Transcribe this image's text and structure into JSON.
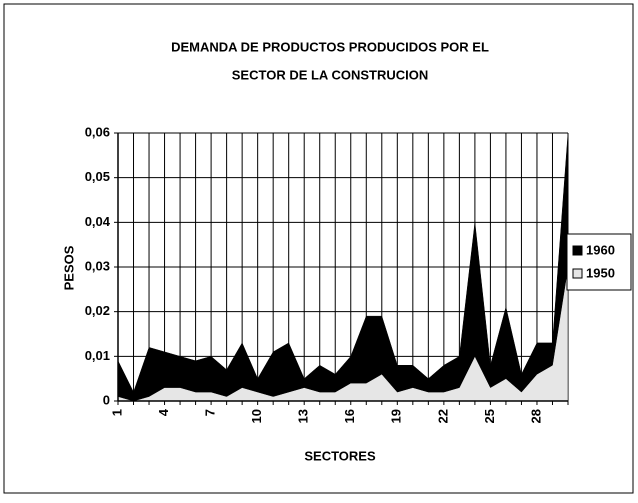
{
  "chart_data": {
    "type": "area",
    "title": [
      "DEMANDA DE PRODUCTOS PRODUCIDOS POR EL",
      "SECTOR DE LA CONSTRUCION"
    ],
    "x_label": "SECTORES",
    "y_label": "PESOS",
    "categories": [
      "1",
      null,
      null,
      "4",
      null,
      null,
      "7",
      null,
      null,
      "10",
      null,
      null,
      "13",
      null,
      null,
      "16",
      null,
      null,
      "19",
      null,
      null,
      "22",
      null,
      null,
      "25",
      null,
      null,
      "28",
      null,
      null
    ],
    "series": [
      {
        "name": "1960",
        "color": "#000000",
        "values": [
          0.009,
          0.002,
          0.012,
          0.011,
          0.01,
          0.009,
          0.01,
          0.007,
          0.013,
          0.005,
          0.011,
          0.013,
          0.005,
          0.008,
          0.006,
          0.01,
          0.019,
          0.019,
          0.008,
          0.008,
          0.005,
          0.008,
          0.01,
          0.04,
          0.008,
          0.021,
          0.006,
          0.013,
          0.013,
          0.06
        ]
      },
      {
        "name": "1950",
        "color": "#e6e6e6",
        "values": [
          0.001,
          0.0,
          0.001,
          0.003,
          0.003,
          0.002,
          0.002,
          0.001,
          0.003,
          0.002,
          0.001,
          0.002,
          0.003,
          0.002,
          0.002,
          0.004,
          0.004,
          0.006,
          0.002,
          0.003,
          0.002,
          0.002,
          0.003,
          0.01,
          0.003,
          0.005,
          0.002,
          0.006,
          0.008,
          0.03
        ]
      }
    ],
    "ylim": [
      0,
      0.06
    ],
    "yticks": [
      0,
      {
        "value": 0.01,
        "label": "0,01"
      },
      {
        "value": 0.02,
        "label": "0,02"
      },
      {
        "value": 0.03,
        "label": "0,03"
      },
      {
        "value": 0.04,
        "label": "0,04"
      },
      {
        "value": 0.05,
        "label": "0,05"
      },
      {
        "value": 0.06,
        "label": "0,06"
      }
    ],
    "grid": true,
    "legend": "right"
  }
}
